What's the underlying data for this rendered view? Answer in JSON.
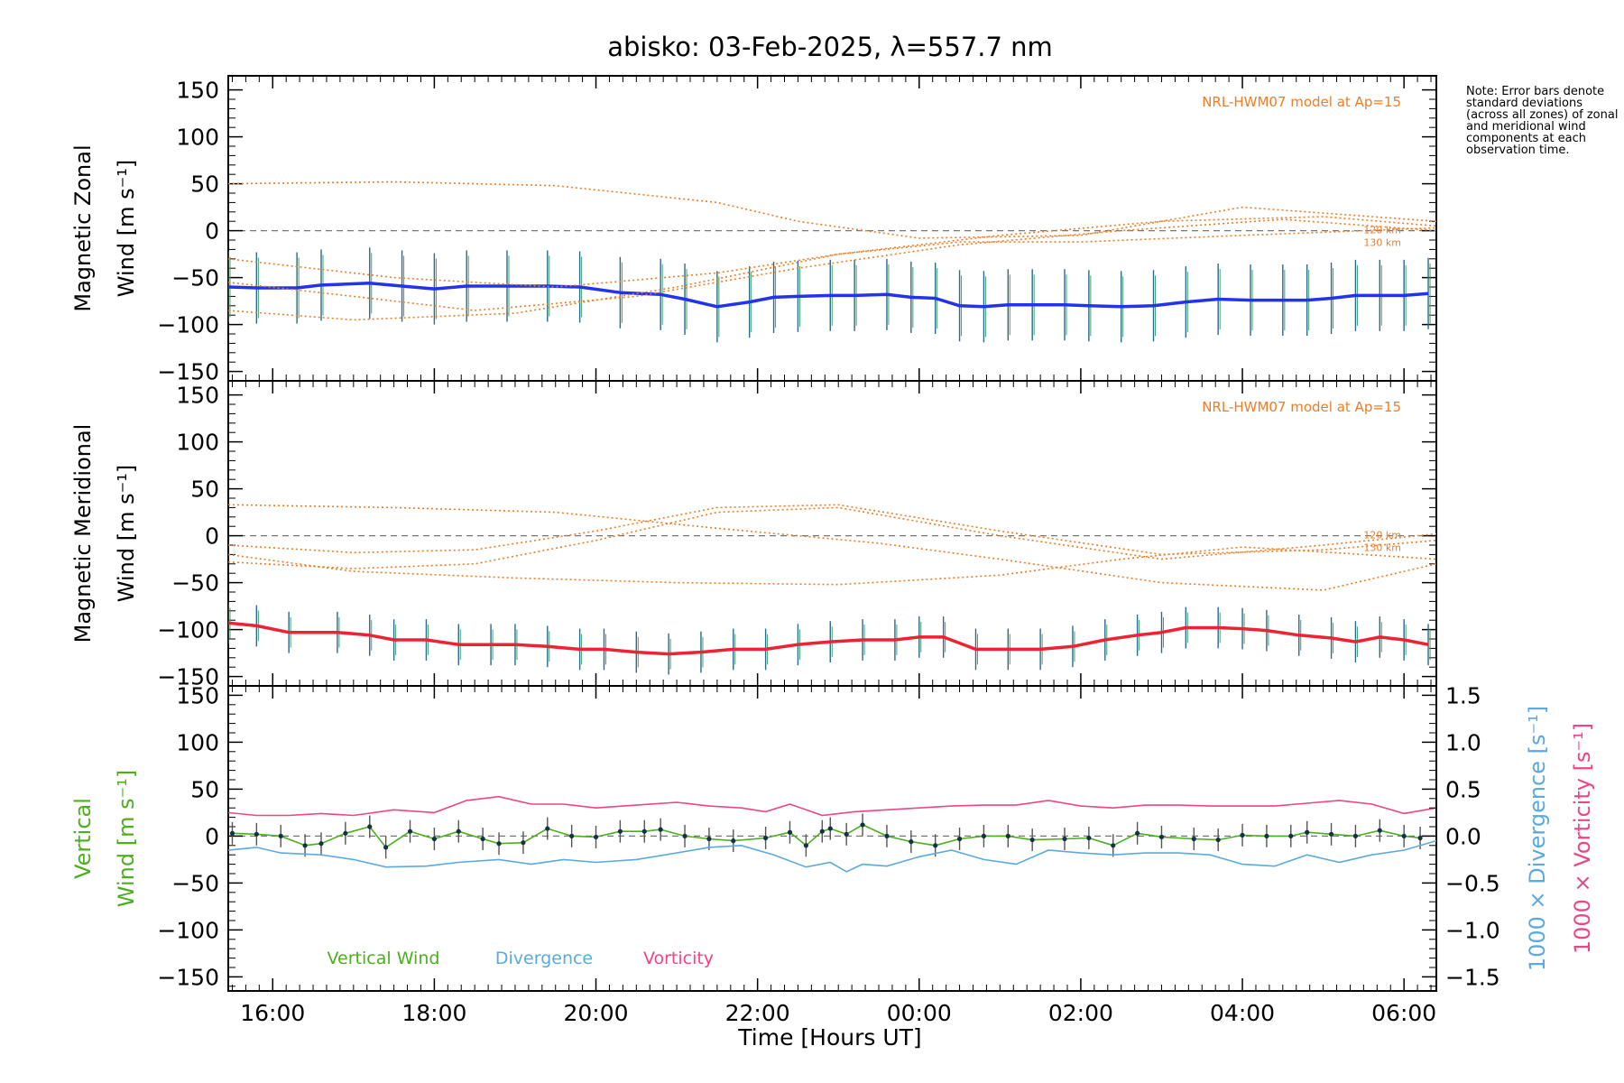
{
  "chart_data": {
    "type": "line",
    "title": "abisko: 03-Feb-2025, λ=557.7 nm",
    "xlabel": "Time [Hours UT]",
    "x_unit": "hours UT (continuing past midnight of 03-Feb-2025)",
    "xlim": [
      15.45,
      30.4
    ],
    "xticks": [
      {
        "value": 16,
        "label": "16:00"
      },
      {
        "value": 18,
        "label": "18:00"
      },
      {
        "value": 20,
        "label": "20:00"
      },
      {
        "value": 22,
        "label": "22:00"
      },
      {
        "value": 24,
        "label": "00:00"
      },
      {
        "value": 26,
        "label": "02:00"
      },
      {
        "value": 28,
        "label": "04:00"
      },
      {
        "value": 30,
        "label": "06:00"
      }
    ],
    "note": "Note: Error bars denote standard deviations (across all zones) of zonal and meridional wind components at each observation time.",
    "panels": [
      {
        "id": "zonal",
        "ylabel_line1": "Magnetic Zonal",
        "ylabel_line2": "Wind [m s⁻¹]",
        "ylim": [
          -160,
          165
        ],
        "yticks": [
          "150",
          "100",
          "50",
          "0",
          "−50",
          "−100",
          "−150"
        ],
        "ytick_values": [
          150,
          100,
          50,
          0,
          -50,
          -100,
          -150
        ],
        "model_label": "NRL-HWM07 model at Ap=15",
        "model_alt_labels": [
          "120 km",
          "130 km"
        ],
        "series": [
          {
            "name": "Zonal wind",
            "color": "#2233ee",
            "x": [
              15.45,
              15.8,
              16.3,
              16.6,
              17.2,
              17.6,
              18.0,
              18.4,
              18.9,
              19.4,
              19.8,
              20.3,
              20.8,
              21.1,
              21.5,
              21.9,
              22.2,
              22.5,
              22.9,
              23.2,
              23.6,
              23.9,
              24.2,
              24.5,
              24.8,
              25.1,
              25.4,
              25.8,
              26.1,
              26.5,
              26.9,
              27.3,
              27.7,
              28.1,
              28.5,
              28.8,
              29.1,
              29.4,
              29.7,
              30.0,
              30.3
            ],
            "y": [
              -60,
              -61,
              -61,
              -58,
              -56,
              -59,
              -62,
              -59,
              -59,
              -59,
              -60,
              -66,
              -68,
              -73,
              -81,
              -76,
              -71,
              -70,
              -69,
              -69,
              -68,
              -71,
              -72,
              -80,
              -81,
              -79,
              -79,
              -79,
              -80,
              -81,
              -80,
              -76,
              -73,
              -74,
              -74,
              -74,
              -72,
              -69,
              -69,
              -69,
              -67
            ],
            "error_bar_halfwidth": 38
          },
          {
            "name": "HWM07 model (several altitudes)",
            "color": "#f07c24",
            "style": "dotted",
            "curves": [
              {
                "x": [
                  15.45,
                  17.5,
                  19.5,
                  21.5,
                  22.5,
                  24.0,
                  26.0,
                  28.0,
                  30.4
                ],
                "y": [
                  50,
                  52,
                  48,
                  30,
                  10,
                  -8,
                  -5,
                  25,
                  10
                ]
              },
              {
                "x": [
                  15.45,
                  17.5,
                  19.5,
                  21.5,
                  23.0,
                  24.5,
                  26.0,
                  28.0,
                  30.4
                ],
                "y": [
                  -30,
                  -50,
                  -60,
                  -45,
                  -25,
                  -12,
                  -12,
                  -5,
                  3
                ]
              },
              {
                "x": [
                  15.45,
                  17.0,
                  18.5,
                  20.5,
                  22.5,
                  24.5,
                  26.5,
                  28.5,
                  30.4
                ],
                "y": [
                  -55,
                  -70,
                  -85,
                  -70,
                  -40,
                  -15,
                  0,
                  12,
                  0
                ]
              },
              {
                "x": [
                  15.45,
                  17.0,
                  19.0,
                  21.0,
                  23.0,
                  25.0,
                  27.0,
                  29.0,
                  30.4
                ],
                "y": [
                  -85,
                  -95,
                  -88,
                  -60,
                  -25,
                  -5,
                  10,
                  15,
                  5
                ]
              }
            ]
          }
        ]
      },
      {
        "id": "meridional",
        "ylabel_line1": "Magnetic Meridional",
        "ylabel_line2": "Wind [m s⁻¹]",
        "ylim": [
          -160,
          165
        ],
        "yticks": [
          "150",
          "100",
          "50",
          "0",
          "−50",
          "−100",
          "−150"
        ],
        "ytick_values": [
          150,
          100,
          50,
          0,
          -50,
          -100,
          -150
        ],
        "model_label": "NRL-HWM07 model at Ap=15",
        "model_alt_labels": [
          "120 km",
          "130 km"
        ],
        "series": [
          {
            "name": "Meridional wind",
            "color": "#ee2233",
            "x": [
              15.45,
              15.8,
              16.2,
              16.8,
              17.2,
              17.5,
              17.9,
              18.3,
              18.7,
              19.0,
              19.4,
              19.8,
              20.1,
              20.5,
              20.9,
              21.3,
              21.7,
              22.1,
              22.5,
              22.9,
              23.3,
              23.7,
              24.0,
              24.3,
              24.7,
              25.1,
              25.5,
              25.9,
              26.3,
              26.7,
              27.0,
              27.3,
              27.7,
              28.0,
              28.3,
              28.7,
              29.1,
              29.4,
              29.7,
              30.0,
              30.3
            ],
            "y": [
              -93,
              -96,
              -103,
              -103,
              -106,
              -111,
              -111,
              -116,
              -116,
              -116,
              -118,
              -121,
              -121,
              -124,
              -126,
              -124,
              -121,
              -121,
              -116,
              -113,
              -111,
              -111,
              -108,
              -108,
              -121,
              -121,
              -121,
              -118,
              -111,
              -106,
              -103,
              -98,
              -98,
              -99,
              -101,
              -106,
              -109,
              -113,
              -108,
              -111,
              -116
            ],
            "error_bar_halfwidth": 22
          },
          {
            "name": "HWM07 model (several altitudes)",
            "color": "#f07c24",
            "style": "dotted",
            "curves": [
              {
                "x": [
                  15.45,
                  17.5,
                  19.5,
                  21.5,
                  23.5,
                  25.0,
                  27.0,
                  29.0,
                  30.4
                ],
                "y": [
                  33,
                  30,
                  25,
                  8,
                  -8,
                  -25,
                  -50,
                  -58,
                  -30
                ]
              },
              {
                "x": [
                  15.45,
                  17.0,
                  18.5,
                  20.0,
                  21.5,
                  23.0,
                  25.0,
                  27.0,
                  29.0,
                  30.4
                ],
                "y": [
                  -10,
                  -18,
                  -15,
                  5,
                  30,
                  33,
                  5,
                  -20,
                  -15,
                  -5
                ]
              },
              {
                "x": [
                  15.45,
                  17.0,
                  18.5,
                  20.0,
                  21.5,
                  23.0,
                  25.0,
                  27.0,
                  29.0,
                  30.4
                ],
                "y": [
                  -28,
                  -35,
                  -30,
                  -5,
                  25,
                  30,
                  0,
                  -25,
                  -10,
                  2
                ]
              },
              {
                "x": [
                  15.45,
                  17.0,
                  19.0,
                  21.0,
                  23.0,
                  25.0,
                  26.5,
                  28.0,
                  29.5,
                  30.4
                ],
                "y": [
                  -20,
                  -38,
                  -45,
                  -50,
                  -52,
                  -42,
                  -25,
                  -12,
                  -20,
                  -25
                ]
              }
            ]
          }
        ]
      },
      {
        "id": "vertical",
        "ylabel_line1": "Vertical",
        "ylabel_line2": "Wind [m s⁻¹]",
        "ylim": [
          -165,
          160
        ],
        "yticks": [
          "150",
          "100",
          "50",
          "0",
          "−50",
          "−100",
          "−150"
        ],
        "ytick_values": [
          150,
          100,
          50,
          0,
          -50,
          -100,
          -150
        ],
        "right_axis": {
          "ylim": [
            -1.65,
            1.6
          ],
          "ytick_values": [
            1.5,
            1.0,
            0.5,
            0.0,
            -0.5,
            -1.0,
            -1.5
          ],
          "yticks": [
            "1.5",
            "1.0",
            "0.5",
            "0.0",
            "−0.5",
            "−1.0",
            "−1.5"
          ],
          "label_divergence": "1000 × Divergence [s⁻¹]",
          "label_vorticity": "1000 × Vorticity [s⁻¹]"
        },
        "legend": [
          "Vertical Wind",
          "Divergence",
          "Vorticity"
        ],
        "series": [
          {
            "name": "Vertical Wind",
            "color": "#4caf1e",
            "x": [
              15.5,
              15.8,
              16.1,
              16.4,
              16.6,
              16.9,
              17.2,
              17.4,
              17.7,
              18.0,
              18.3,
              18.6,
              18.8,
              19.1,
              19.4,
              19.7,
              20.0,
              20.3,
              20.6,
              20.8,
              21.1,
              21.4,
              21.7,
              22.1,
              22.4,
              22.6,
              22.8,
              22.9,
              23.1,
              23.3,
              23.6,
              23.9,
              24.2,
              24.5,
              24.8,
              25.1,
              25.4,
              25.8,
              26.1,
              26.4,
              26.7,
              27.0,
              27.4,
              27.7,
              28.0,
              28.3,
              28.6,
              28.8,
              29.1,
              29.4,
              29.7,
              30.0,
              30.2
            ],
            "y": [
              3,
              2,
              0,
              -10,
              -8,
              3,
              10,
              -12,
              5,
              -3,
              5,
              -3,
              -8,
              -7,
              8,
              0,
              -1,
              5,
              5,
              7,
              0,
              -3,
              -5,
              -2,
              4,
              -10,
              5,
              8,
              2,
              12,
              0,
              -6,
              -10,
              -3,
              0,
              0,
              -4,
              -3,
              -2,
              -10,
              3,
              -1,
              -3,
              -4,
              1,
              0,
              0,
              4,
              2,
              0,
              6,
              0,
              -2
            ],
            "error_bar_halfwidth": 12
          },
          {
            "name": "Divergence",
            "color": "#5aaadf",
            "axis": "right",
            "x": [
              15.45,
              15.8,
              16.1,
              16.6,
              17.0,
              17.4,
              17.9,
              18.3,
              18.8,
              19.2,
              19.6,
              20.0,
              20.5,
              21.0,
              21.4,
              21.8,
              22.2,
              22.6,
              22.9,
              23.1,
              23.3,
              23.6,
              24.0,
              24.4,
              24.8,
              25.2,
              25.6,
              26.0,
              26.4,
              26.8,
              27.2,
              27.6,
              28.0,
              28.4,
              28.8,
              29.2,
              29.6,
              30.0,
              30.4
            ],
            "y": [
              -0.15,
              -0.12,
              -0.18,
              -0.2,
              -0.25,
              -0.33,
              -0.32,
              -0.28,
              -0.25,
              -0.3,
              -0.25,
              -0.28,
              -0.25,
              -0.18,
              -0.12,
              -0.1,
              -0.2,
              -0.33,
              -0.28,
              -0.38,
              -0.3,
              -0.32,
              -0.22,
              -0.15,
              -0.25,
              -0.3,
              -0.15,
              -0.18,
              -0.2,
              -0.18,
              -0.18,
              -0.2,
              -0.3,
              -0.32,
              -0.2,
              -0.28,
              -0.2,
              -0.15,
              -0.05
            ]
          },
          {
            "name": "Vorticity",
            "color": "#ee4488",
            "axis": "right",
            "x": [
              15.45,
              15.8,
              16.2,
              16.6,
              17.0,
              17.5,
              18.0,
              18.4,
              18.8,
              19.2,
              19.6,
              20.0,
              20.5,
              21.0,
              21.4,
              21.8,
              22.1,
              22.4,
              22.8,
              23.2,
              23.6,
              24.0,
              24.4,
              24.8,
              25.2,
              25.6,
              26.0,
              26.4,
              26.8,
              27.2,
              27.6,
              28.0,
              28.4,
              28.8,
              29.2,
              29.6,
              30.0,
              30.4
            ],
            "y": [
              0.25,
              0.22,
              0.22,
              0.24,
              0.22,
              0.28,
              0.25,
              0.38,
              0.42,
              0.34,
              0.34,
              0.3,
              0.33,
              0.36,
              0.32,
              0.3,
              0.26,
              0.34,
              0.22,
              0.26,
              0.28,
              0.3,
              0.32,
              0.33,
              0.33,
              0.38,
              0.32,
              0.3,
              0.33,
              0.33,
              0.32,
              0.32,
              0.32,
              0.35,
              0.38,
              0.34,
              0.24,
              0.3
            ]
          }
        ]
      }
    ]
  }
}
